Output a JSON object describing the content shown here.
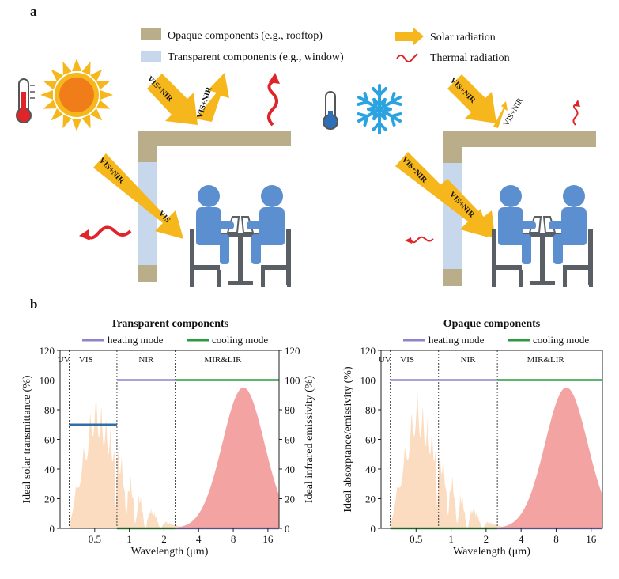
{
  "panel_a": {
    "label": "a",
    "legend": {
      "opaque": "Opaque components (e.g., rooftop)",
      "transparent": "Transparent components (e.g., window)",
      "solar": "Solar radiation",
      "thermal": "Thermal radiation"
    },
    "arrow_labels": {
      "vis_nir": "VIS+NIR",
      "vis": "VIS"
    },
    "colors": {
      "opaque": "#b9ad8a",
      "transparent": "#c7d7ec",
      "solar": "#f6b71c",
      "thermal": "#e0242a",
      "people": "#5b8fcf",
      "furniture": "#5a5f66"
    }
  },
  "panel_b": {
    "label": "b",
    "colors": {
      "heating": "#8e84cc",
      "cooling": "#2e9a3f",
      "solar_fill": "#fbdcc0",
      "ir_fill": "#f4a3a3",
      "trans_line": "#2f6fa8"
    }
  },
  "chart_data": [
    {
      "type": "area",
      "title": "Transparent components",
      "legend": [
        "heating mode",
        "cooling mode"
      ],
      "xlabel": "Wavelength (μm)",
      "ylabel": "Ideal solar transmittance (%)",
      "ylabel_right": "Ideal infrared emissivity (%)",
      "x_ticks": [
        "0.5",
        "1",
        "2",
        "4",
        "8",
        "16"
      ],
      "y_ticks": [
        "0",
        "20",
        "40",
        "60",
        "80",
        "100",
        "120"
      ],
      "y2_ticks": [
        "0",
        "20",
        "40",
        "60",
        "80",
        "100",
        "120"
      ],
      "ylim": [
        0,
        120
      ],
      "xlim": [
        0.25,
        20
      ],
      "regions": [
        "UV",
        "VIS",
        "NIR",
        "MIR&LIR"
      ],
      "region_bounds": [
        0.3,
        0.78,
        2.5
      ],
      "series": [
        {
          "name": "heating mode",
          "segments": [
            {
              "x": [
                0.78,
                2.5
              ],
              "y": 100
            },
            {
              "x": [
                2.5,
                20
              ],
              "y": 0
            }
          ]
        },
        {
          "name": "cooling mode",
          "segments": [
            {
              "x": [
                0.78,
                2.5
              ],
              "y": 0
            },
            {
              "x": [
                2.5,
                20
              ],
              "y": 100
            }
          ]
        },
        {
          "name": "transmittance (both modes)",
          "segments": [
            {
              "x": [
                0.3,
                0.78
              ],
              "y": 70
            }
          ]
        }
      ]
    },
    {
      "type": "area",
      "title": "Opaque components",
      "legend": [
        "heating mode",
        "cooling mode"
      ],
      "xlabel": "Wavelength (μm)",
      "ylabel": "Ideal absorptance/emissivity (%)",
      "x_ticks": [
        "0.5",
        "1",
        "2",
        "4",
        "8",
        "16"
      ],
      "y_ticks": [
        "0",
        "20",
        "40",
        "60",
        "80",
        "100",
        "120"
      ],
      "ylim": [
        0,
        120
      ],
      "xlim": [
        0.25,
        20
      ],
      "regions": [
        "UV",
        "VIS",
        "NIR",
        "MIR&LIR"
      ],
      "region_bounds": [
        0.3,
        0.78,
        2.5
      ],
      "series": [
        {
          "name": "heating mode",
          "segments": [
            {
              "x": [
                0.3,
                2.5
              ],
              "y": 100
            },
            {
              "x": [
                2.5,
                20
              ],
              "y": 0
            }
          ]
        },
        {
          "name": "cooling mode",
          "segments": [
            {
              "x": [
                0.3,
                2.5
              ],
              "y": 0
            },
            {
              "x": [
                2.5,
                20
              ],
              "y": 100
            }
          ]
        }
      ]
    }
  ]
}
